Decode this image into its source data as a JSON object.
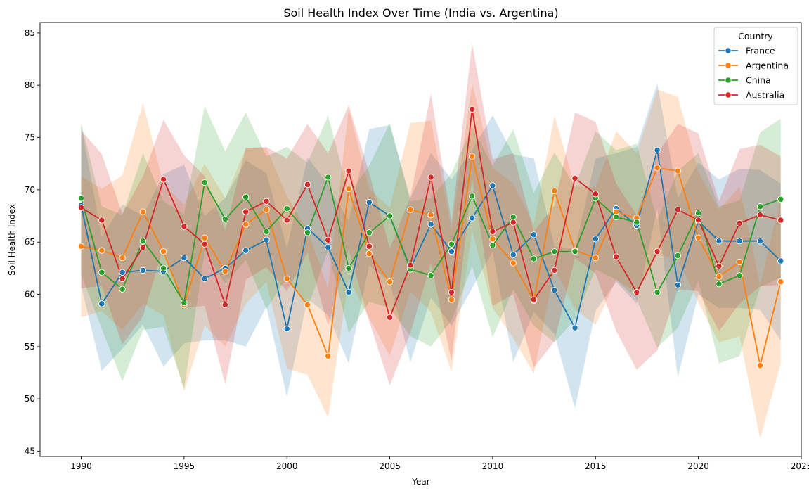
{
  "chart_data": {
    "type": "line",
    "title": "Soil Health Index Over Time (India vs. Argentina)",
    "xlabel": "Year",
    "ylabel": "Soil Health Index",
    "xlim": [
      1988,
      2025
    ],
    "ylim": [
      44.5,
      86
    ],
    "xticks": [
      1990,
      1995,
      2000,
      2005,
      2010,
      2015,
      2020,
      2025
    ],
    "yticks": [
      45,
      50,
      55,
      60,
      65,
      70,
      75,
      80,
      85
    ],
    "legend": {
      "title": "Country",
      "placement": "top-right"
    },
    "x": [
      1990,
      1991,
      1992,
      1993,
      1994,
      1995,
      1996,
      1997,
      1998,
      1999,
      2000,
      2001,
      2002,
      2003,
      2004,
      2005,
      2006,
      2007,
      2008,
      2009,
      2010,
      2011,
      2012,
      2013,
      2014,
      2015,
      2016,
      2017,
      2018,
      2019,
      2020,
      2021,
      2022,
      2023,
      2024
    ],
    "series": [
      {
        "name": "France",
        "color": "#1f77b4",
        "values": [
          68.5,
          59.1,
          62.1,
          62.3,
          62.2,
          63.5,
          61.5,
          62.5,
          64.2,
          65.2,
          56.7,
          66.3,
          64.5,
          60.2,
          68.8,
          67.5,
          62.5,
          66.7,
          64.1,
          67.3,
          70.4,
          63.8,
          65.7,
          60.4,
          56.8,
          65.3,
          68.2,
          66.6,
          73.8,
          60.9,
          67.0,
          65.1,
          65.1,
          65.1,
          63.2
        ],
        "lower": [
          60.8,
          52.7,
          54.8,
          57.1,
          53.1,
          55.3,
          55.6,
          55.6,
          55.0,
          58.8,
          50.2,
          59.6,
          58.0,
          53.4,
          62.8,
          61.2,
          53.5,
          59.7,
          57.0,
          60.6,
          64.1,
          53.5,
          58.3,
          56.2,
          49.1,
          58.4,
          61.2,
          59.1,
          68.2,
          52.1,
          60.0,
          58.7,
          58.7,
          58.5,
          55.6
        ],
        "upper": [
          76.2,
          65.5,
          68.6,
          67.5,
          71.5,
          72.4,
          67.5,
          69.2,
          72.8,
          71.6,
          64.4,
          73.1,
          70.5,
          67.0,
          75.8,
          76.2,
          69.2,
          73.5,
          71.0,
          73.8,
          77.1,
          73.4,
          73.0,
          64.6,
          64.3,
          73.0,
          73.5,
          74.1,
          80.2,
          69.2,
          72.6,
          71.0,
          72.0,
          71.9,
          70.6
        ]
      },
      {
        "name": "Argentina",
        "color": "#ff7f0e",
        "values": [
          64.6,
          64.2,
          63.5,
          67.9,
          64.1,
          59.0,
          65.4,
          62.2,
          66.7,
          68.1,
          61.5,
          59.0,
          54.1,
          70.1,
          63.9,
          61.2,
          68.1,
          67.6,
          59.5,
          73.2,
          65.3,
          63.0,
          59.4,
          69.9,
          64.2,
          63.5,
          67.9,
          67.3,
          72.1,
          71.8,
          65.4,
          61.7,
          63.1,
          53.2,
          61.2
        ],
        "lower": [
          57.8,
          58.4,
          56.6,
          59.1,
          58.0,
          50.7,
          57.0,
          55.0,
          59.1,
          61.2,
          52.9,
          52.3,
          48.2,
          61.5,
          57.7,
          54.1,
          60.3,
          58.3,
          52.6,
          66.1,
          58.7,
          55.8,
          52.4,
          62.5,
          58.6,
          57.1,
          61.4,
          60.1,
          63.8,
          63.4,
          59.2,
          55.4,
          56.0,
          46.2,
          53.4
        ],
        "upper": [
          71.3,
          70.1,
          71.4,
          78.3,
          70.5,
          68.6,
          72.5,
          69.2,
          74.0,
          74.0,
          69.4,
          66.1,
          60.6,
          77.8,
          70.1,
          68.3,
          76.4,
          76.6,
          66.2,
          80.2,
          72.1,
          70.6,
          66.7,
          77.1,
          70.3,
          70.2,
          75.6,
          73.5,
          79.6,
          78.9,
          71.7,
          68.1,
          70.3,
          60.9,
          69.2
        ]
      },
      {
        "name": "China",
        "color": "#2ca02c",
        "values": [
          69.2,
          62.1,
          60.5,
          65.1,
          62.5,
          59.2,
          70.7,
          67.2,
          69.3,
          66.0,
          68.2,
          65.9,
          71.2,
          62.5,
          65.9,
          67.5,
          62.4,
          61.8,
          64.8,
          69.4,
          64.7,
          67.4,
          63.4,
          64.1,
          64.1,
          69.2,
          67.4,
          66.9,
          60.2,
          63.7,
          67.8,
          61.0,
          61.8,
          68.4,
          69.1
        ],
        "lower": [
          61.9,
          56.7,
          51.7,
          56.6,
          56.9,
          51.0,
          64.1,
          61.0,
          63.3,
          58.6,
          61.6,
          58.7,
          64.2,
          56.3,
          59.3,
          58.7,
          56.0,
          55.0,
          57.5,
          62.7,
          55.9,
          60.5,
          57.0,
          55.4,
          57.6,
          62.4,
          61.4,
          59.5,
          54.9,
          56.8,
          61.3,
          53.4,
          54.1,
          60.7,
          61.6
        ],
        "upper": [
          76.4,
          68.4,
          67.6,
          73.5,
          68.9,
          67.7,
          78.0,
          73.7,
          77.4,
          73.2,
          74.1,
          72.6,
          77.1,
          69.6,
          72.3,
          76.4,
          68.9,
          69.2,
          71.6,
          76.0,
          72.3,
          75.8,
          69.7,
          73.6,
          70.3,
          75.6,
          73.8,
          74.4,
          67.1,
          71.8,
          73.5,
          68.4,
          69.0,
          75.5,
          76.8
        ]
      },
      {
        "name": "Australia",
        "color": "#d62728",
        "values": [
          68.3,
          67.1,
          61.5,
          64.5,
          71.0,
          66.5,
          64.8,
          59.0,
          67.9,
          68.9,
          67.1,
          70.5,
          65.2,
          71.8,
          64.6,
          57.8,
          62.8,
          71.2,
          60.2,
          77.7,
          66.0,
          66.9,
          59.5,
          62.3,
          71.1,
          69.6,
          63.6,
          60.2,
          64.1,
          68.1,
          67.1,
          62.7,
          66.8,
          67.6,
          67.1
        ],
        "lower": [
          60.6,
          60.8,
          55.2,
          57.9,
          64.5,
          58.7,
          58.9,
          51.4,
          61.4,
          62.6,
          60.3,
          64.0,
          57.0,
          64.3,
          57.4,
          51.3,
          56.3,
          63.0,
          53.6,
          71.1,
          58.9,
          60.0,
          53.0,
          55.5,
          63.5,
          62.0,
          56.5,
          52.8,
          54.6,
          60.5,
          60.3,
          56.5,
          59.1,
          60.8,
          60.9
        ],
        "upper": [
          75.7,
          73.4,
          67.7,
          71.3,
          76.7,
          73.3,
          71.3,
          66.1,
          74.0,
          74.1,
          73.0,
          76.3,
          73.5,
          78.1,
          71.6,
          64.4,
          69.3,
          79.2,
          66.9,
          84.0,
          72.9,
          73.5,
          66.0,
          68.5,
          77.4,
          76.5,
          70.6,
          67.6,
          73.4,
          76.3,
          75.4,
          68.9,
          73.9,
          74.3,
          73.2
        ]
      }
    ]
  }
}
